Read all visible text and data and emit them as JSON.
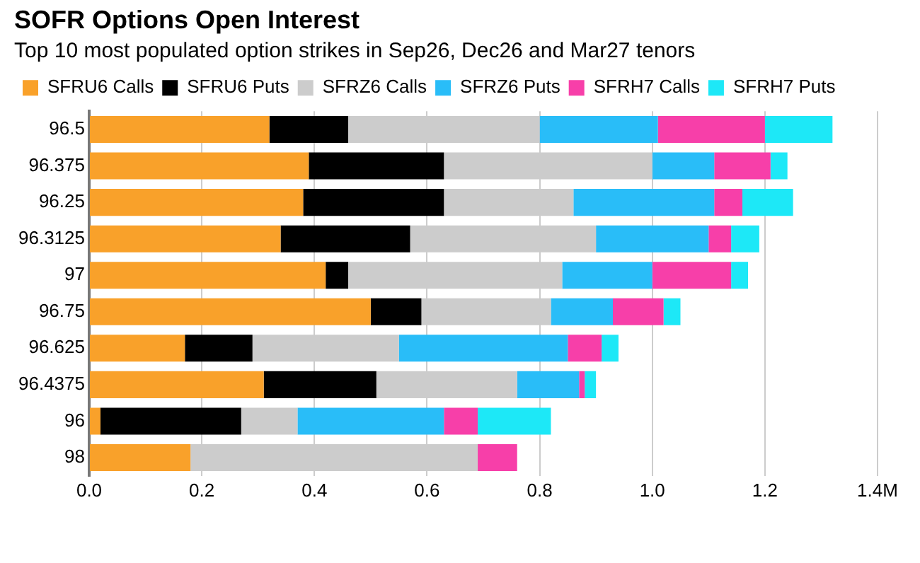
{
  "chart_data": {
    "type": "bar",
    "orientation": "horizontal",
    "stacked": true,
    "title": "SOFR Options Open Interest",
    "subtitle": "Top 10 most populated option strikes in Sep26, Dec26 and Mar27 tenors",
    "categories": [
      "96.5",
      "96.375",
      "96.25",
      "96.3125",
      "97",
      "96.75",
      "96.625",
      "96.4375",
      "96",
      "98"
    ],
    "series": [
      {
        "name": "SFRU6 Calls",
        "color": "#f9a12a",
        "values": [
          0.32,
          0.39,
          0.38,
          0.34,
          0.42,
          0.5,
          0.17,
          0.31,
          0.02,
          0.18
        ]
      },
      {
        "name": "SFRU6 Puts",
        "color": "#000000",
        "values": [
          0.14,
          0.24,
          0.25,
          0.23,
          0.04,
          0.09,
          0.12,
          0.2,
          0.25,
          0
        ]
      },
      {
        "name": "SFRZ6 Calls",
        "color": "#cccccc",
        "values": [
          0.34,
          0.37,
          0.23,
          0.33,
          0.38,
          0.23,
          0.26,
          0.25,
          0.1,
          0.51
        ]
      },
      {
        "name": "SFRZ6 Puts",
        "color": "#29bdf8",
        "values": [
          0.21,
          0.11,
          0.25,
          0.2,
          0.16,
          0.11,
          0.3,
          0.11,
          0.26,
          0
        ]
      },
      {
        "name": "SFRH7 Calls",
        "color": "#f73fa9",
        "values": [
          0.19,
          0.1,
          0.05,
          0.04,
          0.14,
          0.09,
          0.06,
          0.01,
          0.06,
          0.07
        ]
      },
      {
        "name": "SFRH7 Puts",
        "color": "#1de8f7",
        "values": [
          0.12,
          0.03,
          0.09,
          0.05,
          0.03,
          0.03,
          0.03,
          0.02,
          0.13,
          0
        ]
      }
    ],
    "xlim": [
      0,
      1.4
    ],
    "xticks": [
      {
        "value": 0,
        "label": "0.0"
      },
      0.2,
      0.4,
      0.6,
      0.8,
      {
        "value": 1,
        "label": "1.0"
      },
      1.2,
      {
        "value": 1.4,
        "label": "1.4M"
      }
    ],
    "grid": "x",
    "legend": "top left"
  }
}
